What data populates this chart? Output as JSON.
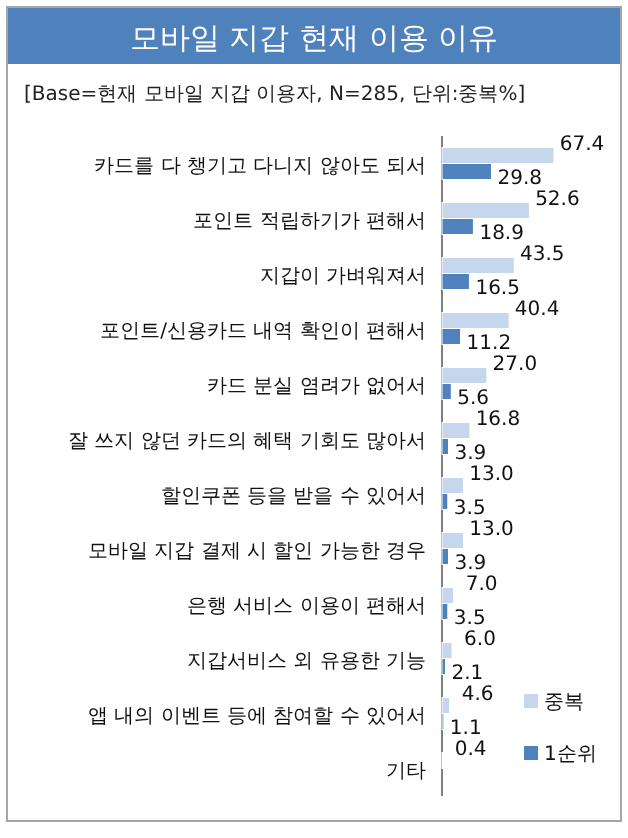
{
  "chart_data": {
    "type": "bar",
    "orientation": "horizontal",
    "title": "모바일 지갑 현재 이용 이유",
    "subtitle": "[Base=현재 모바일 지갑 이용자, N=285, 단위:중복%]",
    "categories": [
      "카드를 다 챙기고 다니지 않아도 되서",
      "포인트 적립하기가 편해서",
      "지갑이 가벼워져서",
      "포인트/신용카드 내역 확인이 편해서",
      "카드 분실 염려가 없어서",
      "잘 쓰지 않던 카드의 혜택 기회도 많아서",
      "할인쿠폰 등을 받을 수 있어서",
      "모바일 지갑 결제 시 할인 가능한 경우",
      "은행 서비스 이용이 편해서",
      "지갑서비스 외 유용한 기능",
      "앱 내의 이벤트 등에 참여할 수 있어서",
      "기타"
    ],
    "series": [
      {
        "name": "중복",
        "color": "#c6d6ec",
        "values": [
          67.4,
          52.6,
          43.5,
          40.4,
          27.0,
          16.8,
          13.0,
          13.0,
          7.0,
          6.0,
          4.6,
          0.4
        ],
        "value_labels": [
          "67.4",
          "52.6",
          "43.5",
          "40.4",
          "27.0",
          "16.8",
          "13.0",
          "13.0",
          "7.0",
          "6.0",
          "4.6",
          "0.4"
        ]
      },
      {
        "name": "1순위",
        "color": "#4f81bd",
        "values": [
          29.8,
          18.9,
          16.5,
          11.2,
          5.6,
          3.9,
          3.5,
          3.9,
          3.5,
          2.1,
          1.1,
          null
        ],
        "value_labels": [
          "29.8",
          "18.9",
          "16.5",
          "11.2",
          "5.6",
          "3.9",
          "3.5",
          "3.9",
          "3.5",
          "2.1",
          "1.1",
          null
        ]
      }
    ],
    "legend": "bottom right"
  }
}
